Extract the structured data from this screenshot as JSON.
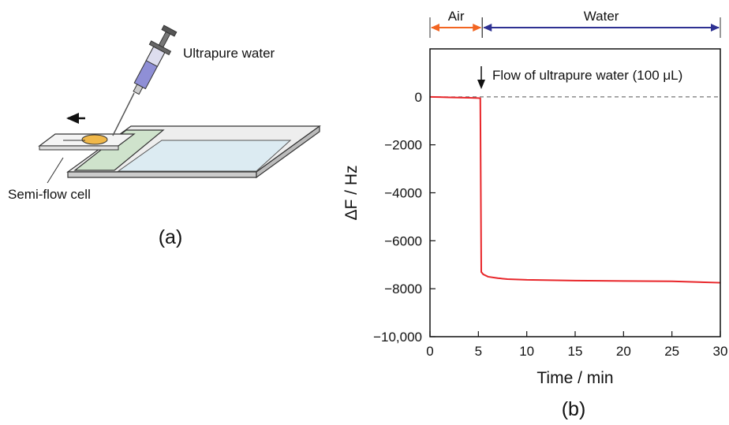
{
  "panel_a": {
    "syringe_label": "Ultrapure water",
    "cell_label": "Semi-flow cell",
    "caption": "(a)"
  },
  "chart_data": {
    "type": "line",
    "caption": "(b)",
    "x_label": "Time / min",
    "y_label": "ΔF / Hz",
    "x": [
      0,
      1,
      2,
      3,
      4,
      5,
      5.2,
      5.3,
      5.5,
      6,
      7,
      8,
      10,
      15,
      20,
      25,
      30
    ],
    "values": [
      0,
      -10,
      -20,
      -30,
      -40,
      -50,
      -60,
      -7300,
      -7400,
      -7500,
      -7560,
      -7600,
      -7630,
      -7660,
      -7680,
      -7690,
      -7750
    ],
    "color": "#e8262a",
    "xlim": [
      0,
      30
    ],
    "xticks": [
      0,
      5,
      10,
      15,
      20,
      25,
      30
    ],
    "ylim": [
      -10000,
      2000
    ],
    "yticks": [
      {
        "value": -10000,
        "label": "−10,000"
      },
      {
        "value": -8000,
        "label": "−8000"
      },
      {
        "value": -6000,
        "label": "−6000"
      },
      {
        "value": -4000,
        "label": "−4000"
      },
      {
        "value": -2000,
        "label": "−2000"
      },
      0
    ],
    "reference_line": {
      "y": 0,
      "dashed": true
    },
    "annotation": {
      "text": "Flow of ultrapure water (100 μL)",
      "x": 5.3
    },
    "regions": [
      {
        "label": "Air",
        "start": 0,
        "end": 5.4,
        "color": "#f26522"
      },
      {
        "label": "Water",
        "start": 5.4,
        "end": 30,
        "color": "#2e3192"
      }
    ]
  }
}
